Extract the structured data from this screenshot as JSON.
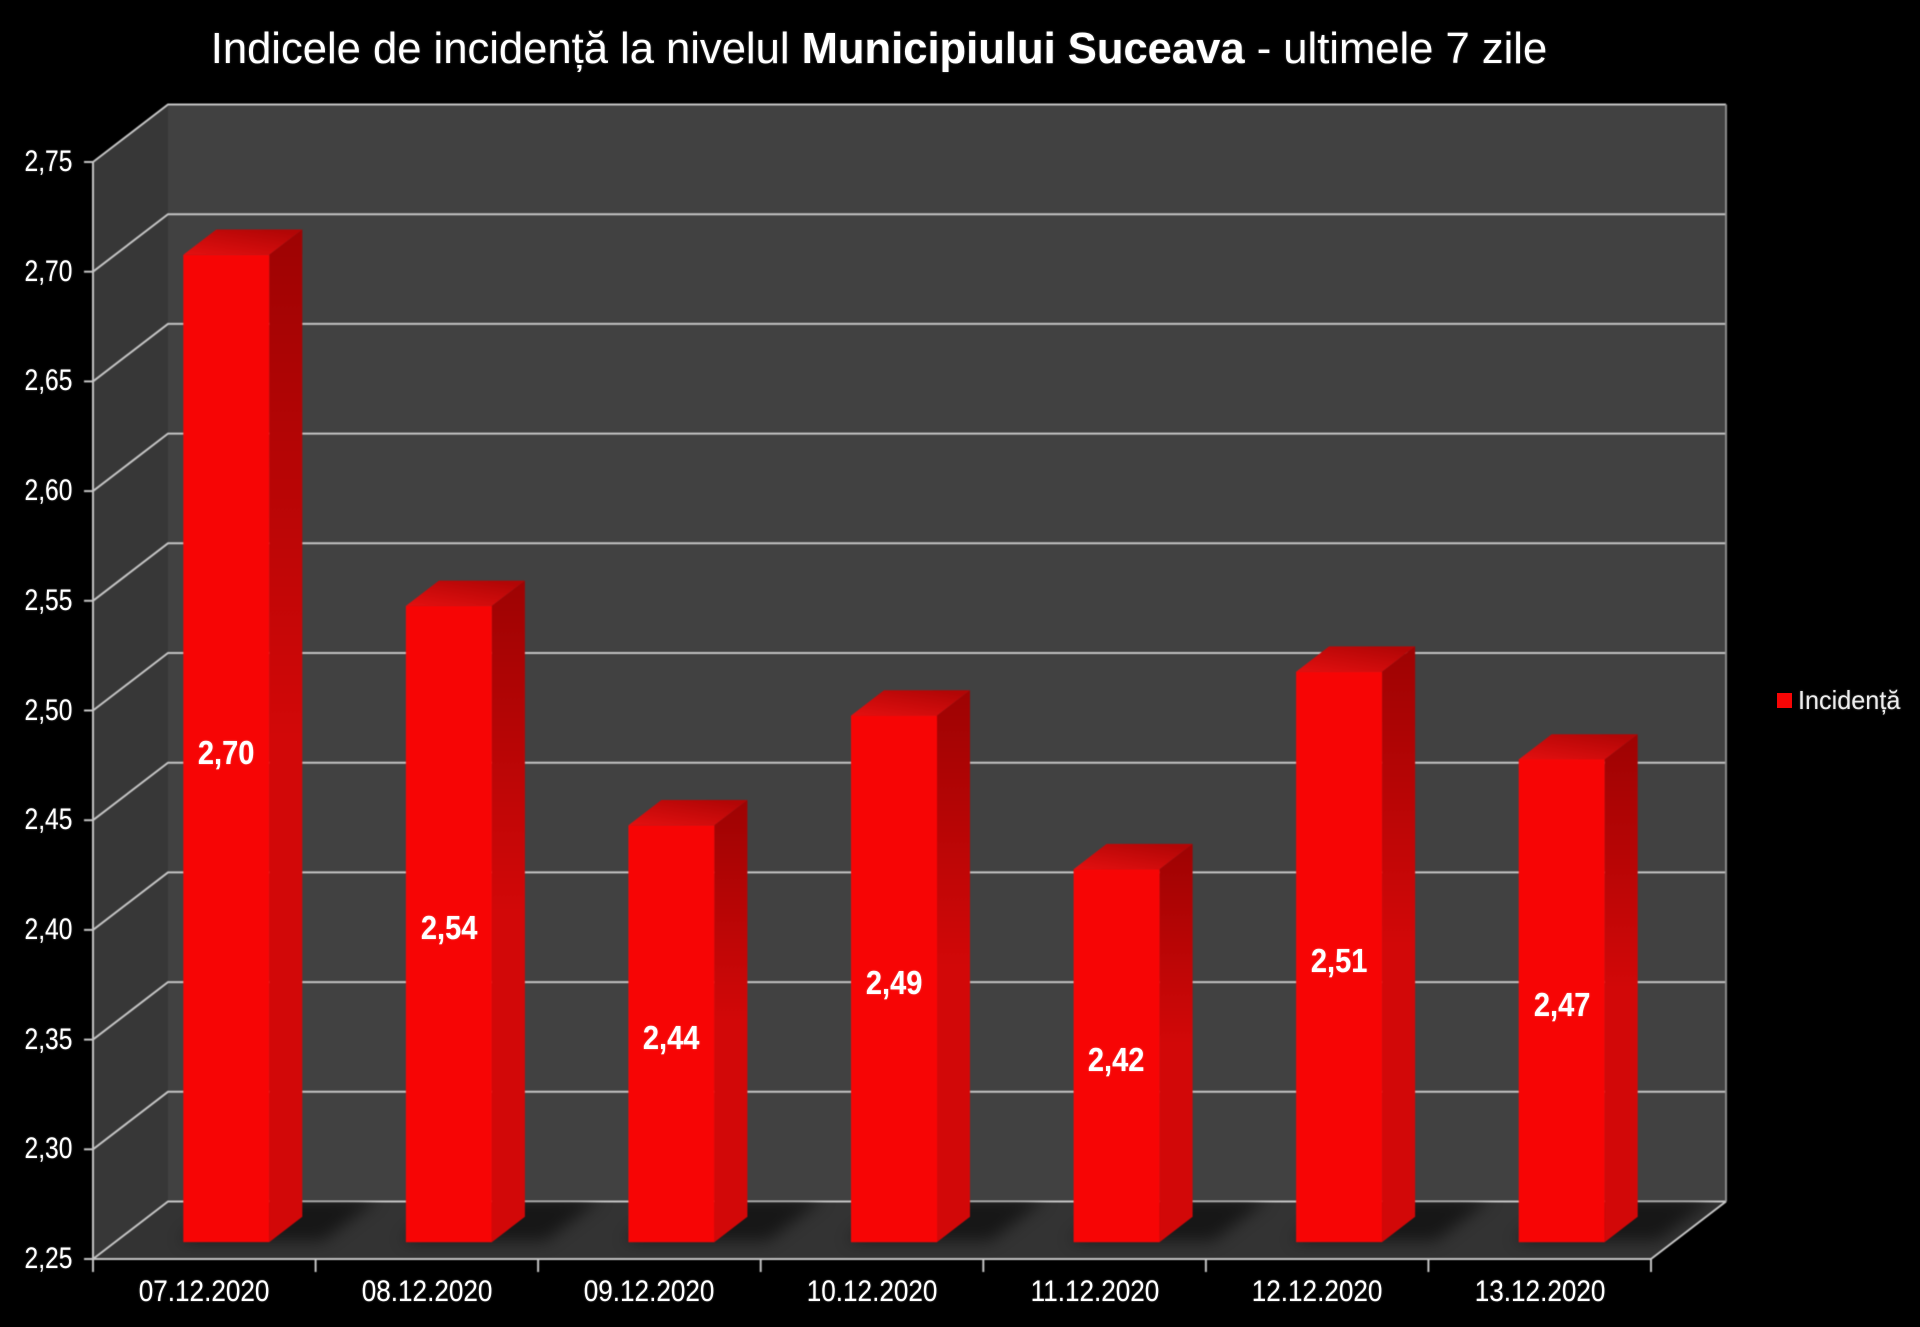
{
  "page": {
    "background": "#000000"
  },
  "title": {
    "prefix": "Indicele de incidență la nivelul ",
    "bold": "Municipiului Suceava",
    "suffix": " - ultimele 7 zile",
    "full": "Indicele de incidență la nivelul Municipiului Suceava - ultimele 7 zile"
  },
  "legend": {
    "label": "Incidență",
    "marker_color": "#f70505",
    "position": "right"
  },
  "chart_data": {
    "type": "bar",
    "style": "3d-column",
    "title": "Indicele de incidență la nivelul Municipiului Suceava - ultimele 7 zile",
    "categories": [
      "07.12.2020",
      "08.12.2020",
      "09.12.2020",
      "10.12.2020",
      "11.12.2020",
      "12.12.2020",
      "13.12.2020"
    ],
    "series": [
      {
        "name": "Incidență",
        "values": [
          2.7,
          2.54,
          2.44,
          2.49,
          2.42,
          2.51,
          2.47
        ],
        "labels": [
          "2,70",
          "2,54",
          "2,44",
          "2,49",
          "2,42",
          "2,51",
          "2,47"
        ]
      }
    ],
    "xlabel": "",
    "ylabel": "",
    "ylim": [
      2.25,
      2.75
    ],
    "ytick_step": 0.05,
    "ytick_labels": [
      "2,25",
      "2,30",
      "2,35",
      "2,40",
      "2,45",
      "2,50",
      "2,55",
      "2,60",
      "2,65",
      "2,70",
      "2,75"
    ],
    "grid": true,
    "legend_position": "right",
    "decimal_separator": ",",
    "colors": {
      "background": "#000000",
      "text": "#ffffff",
      "bar_front": "#f70505",
      "bar_top_front": "#e41010",
      "bar_top_back": "#b20606",
      "bar_side_top": "#9e0303",
      "bar_side_bottom": "#d20808",
      "wall_back": "#414141",
      "wall_side": "#373737",
      "floor": "#333333",
      "gridline": "#c4c4c4",
      "wall_edge": "#8c8c8c",
      "shadow": "#000000"
    }
  }
}
